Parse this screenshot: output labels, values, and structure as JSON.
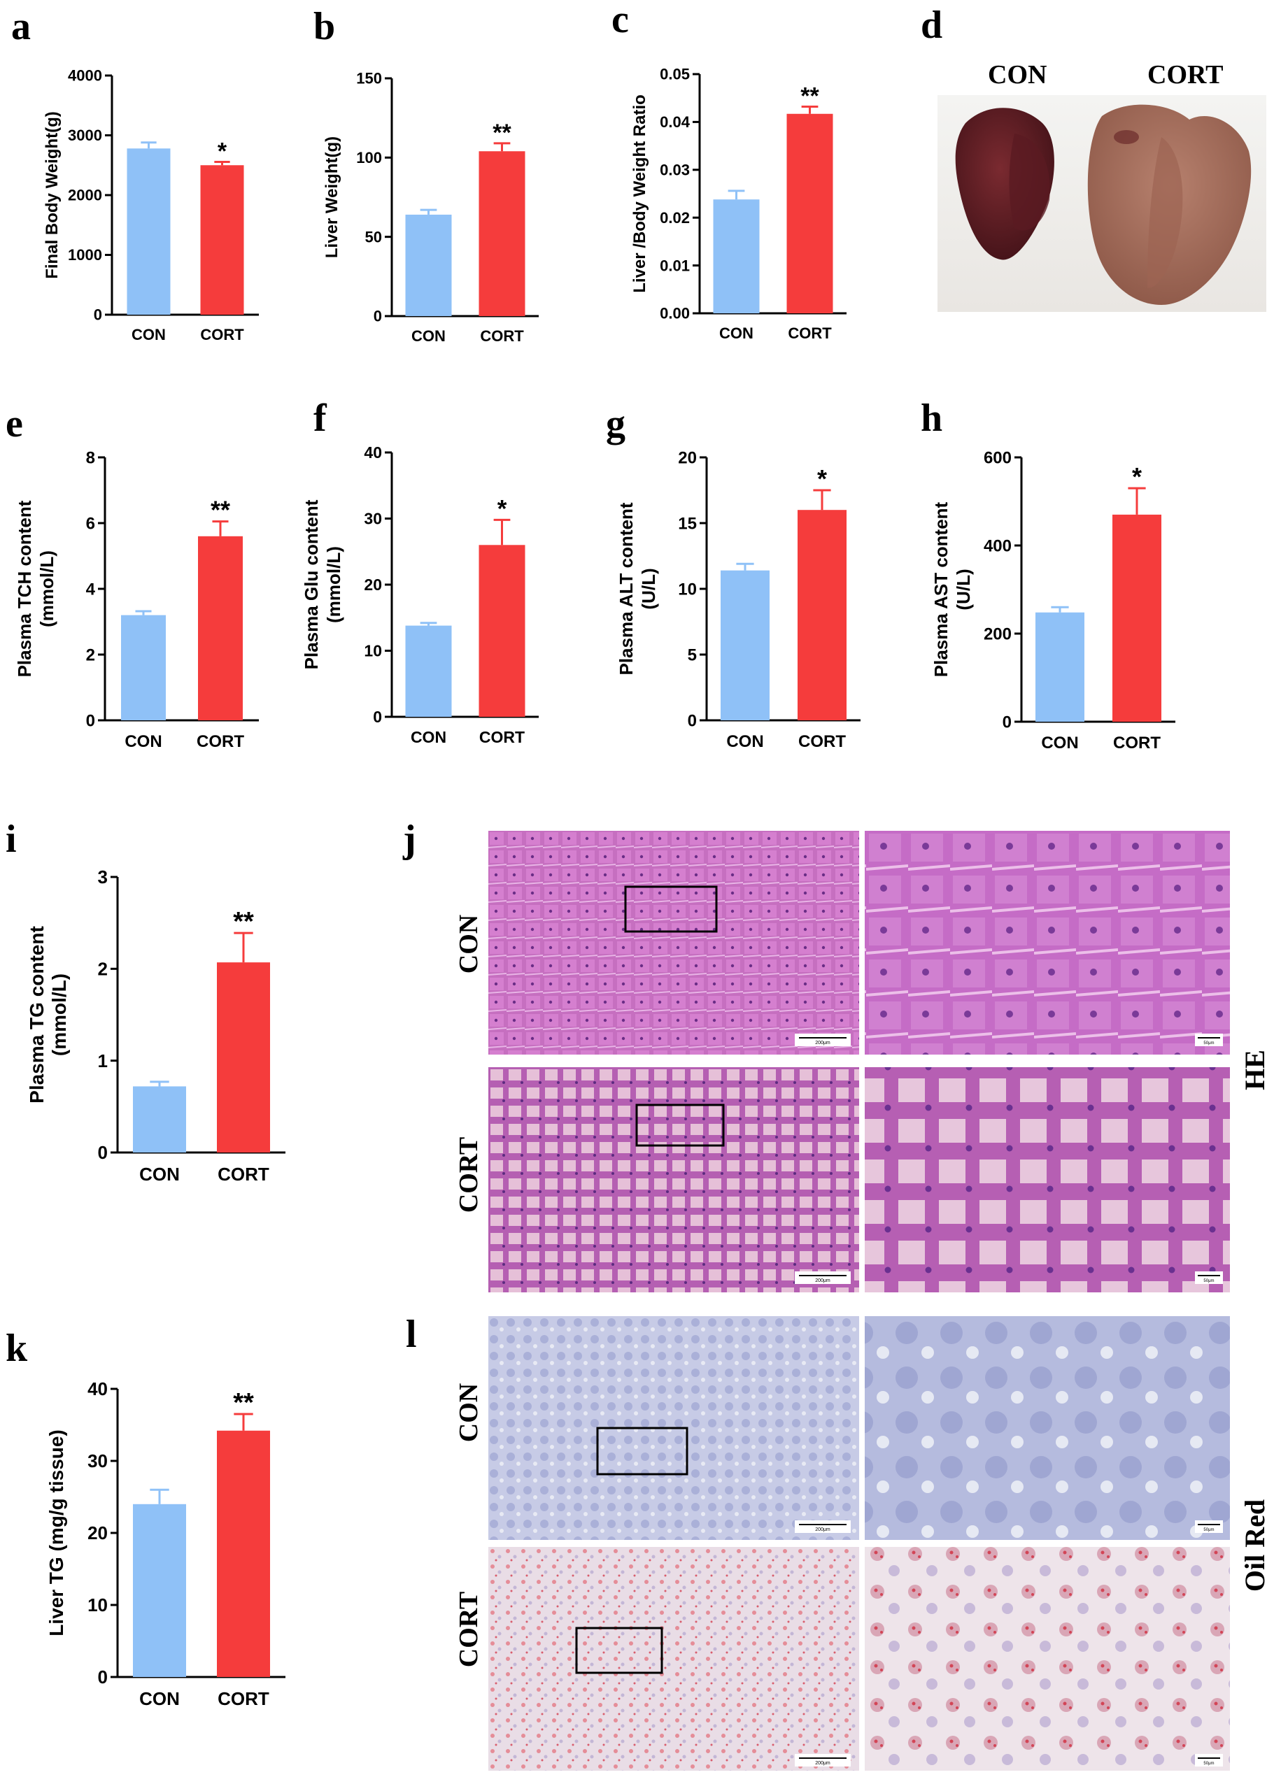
{
  "panel_letters": {
    "a": "a",
    "b": "b",
    "c": "c",
    "d": "d",
    "e": "e",
    "f": "f",
    "g": "g",
    "h": "h",
    "i": "i",
    "j": "j",
    "k": "k",
    "l": "l"
  },
  "liver_photo": {
    "con_label": "CON",
    "cort_label": "CORT"
  },
  "histology": {
    "con_label": "CON",
    "cort_label": "CORT",
    "he_label": "HE",
    "oil_label": "Oil Red",
    "scale_low": "200μm",
    "scale_high": "50μm"
  },
  "colors": {
    "con": "#8fc1f7",
    "cort": "#f53c3c"
  },
  "chart_data": [
    {
      "id": "a",
      "type": "bar",
      "categories": [
        "CON",
        "CORT"
      ],
      "values": [
        2780,
        2500
      ],
      "errors": [
        100,
        55
      ],
      "significance": [
        "",
        "*"
      ],
      "ylabel": "Final Body Weight(g)",
      "ylim": [
        0,
        4000
      ],
      "yticks": [
        "0",
        "1000",
        "2000",
        "3000",
        "4000"
      ]
    },
    {
      "id": "b",
      "type": "bar",
      "categories": [
        "CON",
        "CORT"
      ],
      "values": [
        64,
        104
      ],
      "errors": [
        3,
        5
      ],
      "significance": [
        "",
        "**"
      ],
      "ylabel": "Liver Weight(g)",
      "ylim": [
        0,
        150
      ],
      "yticks": [
        "0",
        "50",
        "100",
        "150"
      ]
    },
    {
      "id": "c",
      "type": "bar",
      "categories": [
        "CON",
        "CORT"
      ],
      "values": [
        0.0238,
        0.0417
      ],
      "errors": [
        0.0018,
        0.0015
      ],
      "significance": [
        "",
        "**"
      ],
      "ylabel": "Liver /Body Weight Ratio",
      "ylim": [
        0,
        0.05
      ],
      "yticks": [
        "0.00",
        "0.01",
        "0.02",
        "0.03",
        "0.04",
        "0.05"
      ]
    },
    {
      "id": "e",
      "type": "bar",
      "categories": [
        "CON",
        "CORT"
      ],
      "values": [
        3.2,
        5.6
      ],
      "errors": [
        0.12,
        0.45
      ],
      "significance": [
        "",
        "**"
      ],
      "ylabel": "Plasma TCH content",
      "ylabel2": "(mmol/L)",
      "ylim": [
        0,
        8
      ],
      "yticks": [
        "0",
        "2",
        "4",
        "6",
        "8"
      ]
    },
    {
      "id": "f",
      "type": "bar",
      "categories": [
        "CON",
        "CORT"
      ],
      "values": [
        13.8,
        26.0
      ],
      "errors": [
        0.4,
        3.8
      ],
      "significance": [
        "",
        "*"
      ],
      "ylabel": "Plasma Glu content",
      "ylabel2": "(mmol/L)",
      "ylim": [
        0,
        40
      ],
      "yticks": [
        "0",
        "10",
        "20",
        "30",
        "40"
      ]
    },
    {
      "id": "g",
      "type": "bar",
      "categories": [
        "CON",
        "CORT"
      ],
      "values": [
        11.4,
        16.0
      ],
      "errors": [
        0.5,
        1.5
      ],
      "significance": [
        "",
        "*"
      ],
      "ylabel": "Plasma ALT content",
      "ylabel2": "(U/L)",
      "ylim": [
        0,
        20
      ],
      "yticks": [
        "0",
        "5",
        "10",
        "15",
        "20"
      ]
    },
    {
      "id": "h",
      "type": "bar",
      "categories": [
        "CON",
        "CORT"
      ],
      "values": [
        248,
        470
      ],
      "errors": [
        12,
        60
      ],
      "significance": [
        "",
        "*"
      ],
      "ylabel": "Plasma AST content",
      "ylabel2": "(U/L)",
      "ylim": [
        0,
        600
      ],
      "yticks": [
        "0",
        "200",
        "400",
        "600"
      ]
    },
    {
      "id": "i",
      "type": "bar",
      "categories": [
        "CON",
        "CORT"
      ],
      "values": [
        0.72,
        2.07
      ],
      "errors": [
        0.05,
        0.32
      ],
      "significance": [
        "",
        "**"
      ],
      "ylabel": "Plasma TG content",
      "ylabel2": "(mmol/L)",
      "ylim": [
        0,
        3
      ],
      "yticks": [
        "0",
        "1",
        "2",
        "3"
      ]
    },
    {
      "id": "k",
      "type": "bar",
      "categories": [
        "CON",
        "CORT"
      ],
      "values": [
        24,
        34.2
      ],
      "errors": [
        2,
        2.3
      ],
      "significance": [
        "",
        "**"
      ],
      "ylabel": "Liver TG (mg/g tissue)",
      "ylim": [
        0,
        40
      ],
      "yticks": [
        "0",
        "10",
        "20",
        "30",
        "40"
      ]
    }
  ]
}
